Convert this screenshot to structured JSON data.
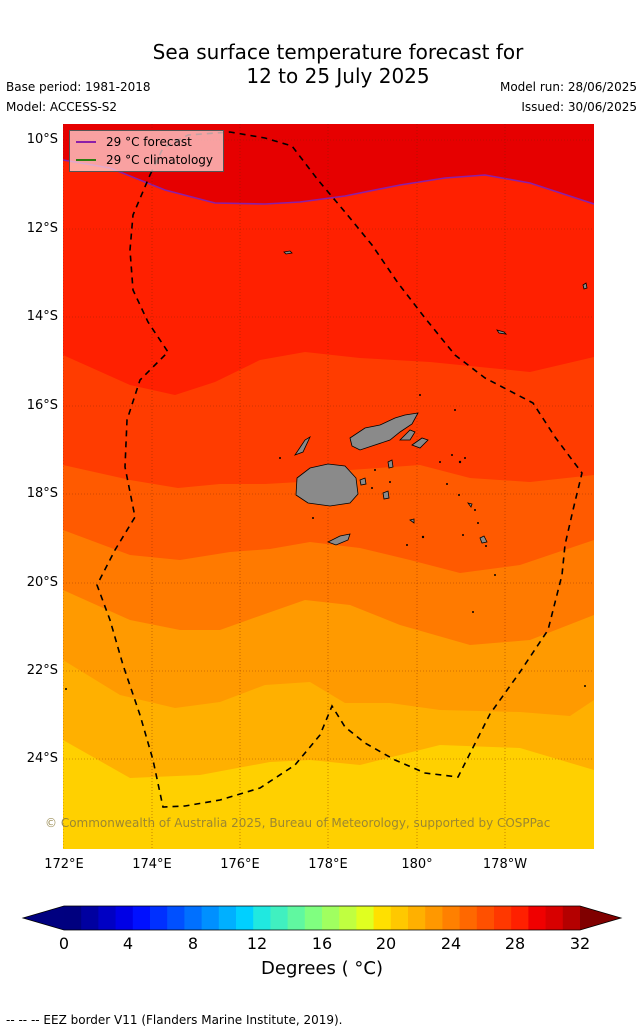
{
  "title": {
    "line1": "Sea surface temperature forecast for",
    "line2": "12 to 25 July 2025"
  },
  "meta": {
    "base_period": "Base period: 1981-2018",
    "model": "Model: ACCESS-S2",
    "model_run": "Model run: 28/06/2025",
    "issued": "Issued: 30/06/2025"
  },
  "map": {
    "lat_labels": [
      "10°S",
      "12°S",
      "14°S",
      "16°S",
      "18°S",
      "20°S",
      "22°S",
      "24°S"
    ],
    "lon_labels": [
      "172°E",
      "174°E",
      "176°E",
      "178°E",
      "180°",
      "178°W"
    ],
    "legend": [
      {
        "label": "29 °C  forecast",
        "color": "#8b1fa8"
      },
      {
        "label": "29 °C  climatology",
        "color": "#2e7d12"
      }
    ],
    "land_color": "#8a8a8a",
    "copyright": "© Commonwealth of Australia 2025, Bureau of Meteorology, supported by COSPPac"
  },
  "colorbar": {
    "ticks": [
      "0",
      "4",
      "8",
      "12",
      "16",
      "20",
      "24",
      "28",
      "32"
    ],
    "title": "Degrees ( °C)",
    "colors": [
      "#00007f",
      "#0000a0",
      "#0000c4",
      "#0000e6",
      "#0010ff",
      "#0030ff",
      "#0050ff",
      "#0070ff",
      "#0090ff",
      "#00b0ff",
      "#00d0ff",
      "#20e8e0",
      "#40f0c0",
      "#60f8a0",
      "#80ff80",
      "#a0ff60",
      "#c0ff40",
      "#e0ff20",
      "#ffe000",
      "#ffc800",
      "#ffb000",
      "#ff9800",
      "#ff8000",
      "#ff6800",
      "#ff5000",
      "#ff3800",
      "#ff2000",
      "#f00000",
      "#d80000",
      "#b40000"
    ],
    "under_color": "#000080",
    "over_color": "#800000"
  },
  "footer": "-- -- -- EEZ border V11 (Flanders Marine Institute, 2019)."
}
